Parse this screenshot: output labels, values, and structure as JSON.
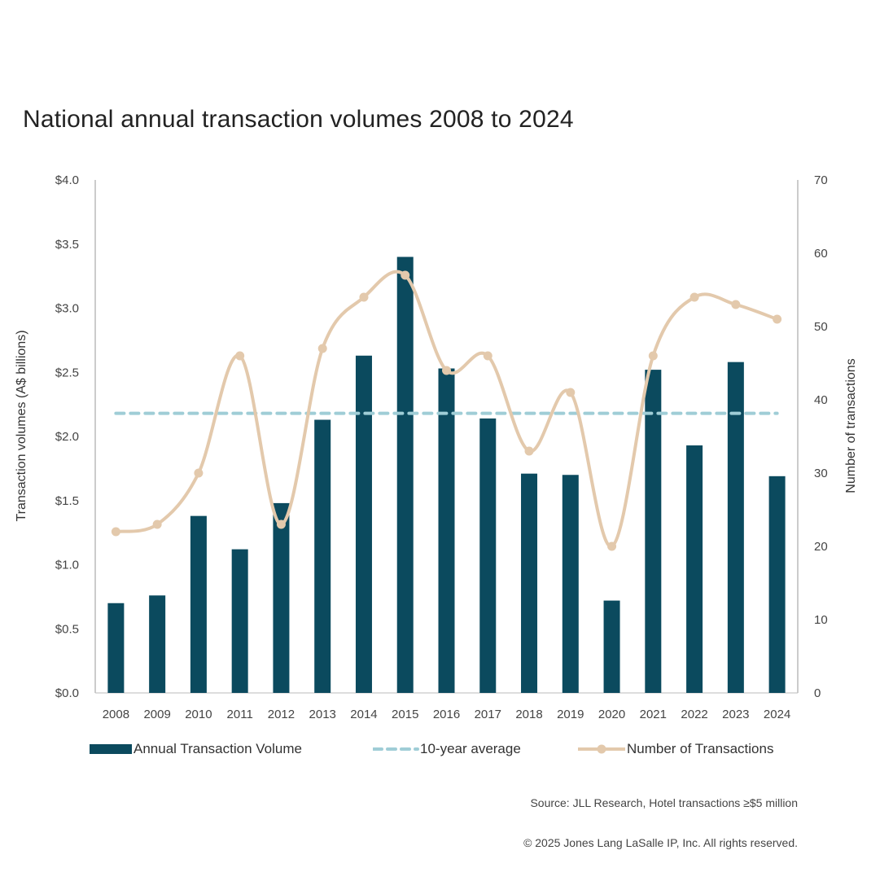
{
  "chart_data": {
    "type": "bar",
    "title": "National annual transaction volumes 2008 to 2024",
    "categories": [
      "2008",
      "2009",
      "2010",
      "2011",
      "2012",
      "2013",
      "2014",
      "2015",
      "2016",
      "2017",
      "2018",
      "2019",
      "2020",
      "2021",
      "2022",
      "2023",
      "2024"
    ],
    "series": [
      {
        "name": "Annual Transaction Volume",
        "type": "bar",
        "axis": "left",
        "color": "#0B4A5E",
        "values": [
          0.7,
          0.76,
          1.38,
          1.12,
          1.48,
          2.13,
          2.63,
          3.4,
          2.53,
          2.14,
          1.71,
          1.7,
          0.72,
          2.52,
          1.93,
          2.58,
          1.69
        ]
      },
      {
        "name": "10-year average",
        "type": "line",
        "style": "dashed",
        "axis": "left",
        "color": "#9FCDD6",
        "value": 2.18
      },
      {
        "name": "Number of Transactions",
        "type": "line",
        "style": "smooth-with-markers",
        "axis": "right",
        "color": "#E3C9AC",
        "values": [
          22,
          23,
          30,
          46,
          23,
          47,
          54,
          57,
          44,
          46,
          33,
          41,
          20,
          46,
          54,
          53,
          51
        ]
      }
    ],
    "ylabel": "Transaction volumes (A$ billions)",
    "y2label": "Number of transactions",
    "ylim": [
      0,
      4.0
    ],
    "y2lim": [
      0,
      70
    ],
    "y_ticks": [
      "$0.0",
      "$0.5",
      "$1.0",
      "$1.5",
      "$2.0",
      "$2.5",
      "$3.0",
      "$3.5",
      "$4.0"
    ],
    "y2_ticks": [
      "0",
      "10",
      "20",
      "30",
      "40",
      "50",
      "60",
      "70"
    ],
    "grid": false,
    "legend_position": "bottom"
  },
  "legend": {
    "bar_label": "Annual Transaction Volume",
    "avg_label": "10-year average",
    "count_label": "Number of Transactions"
  },
  "footer": {
    "source": "Source: JLL Research, Hotel transactions ≥$5 million",
    "copyright": "© 2025 Jones Lang LaSalle IP, Inc. All rights reserved."
  }
}
